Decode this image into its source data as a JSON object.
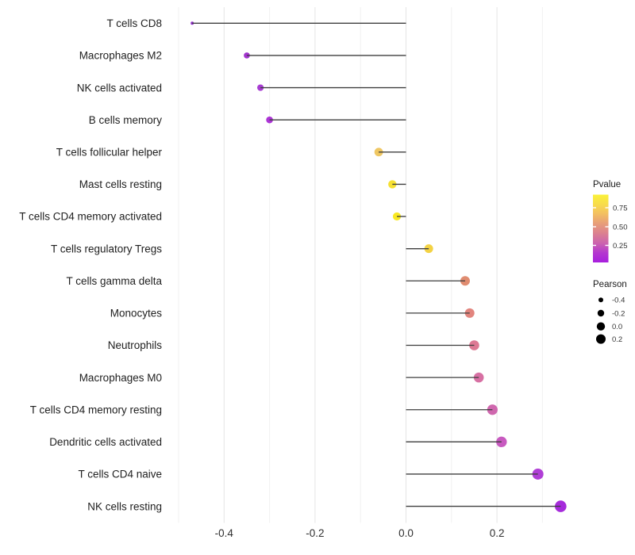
{
  "figure": {
    "background": "#ffffff"
  },
  "chart_data": {
    "type": "scatter",
    "style": "lollipop (horizontal stems anchored at x=0, dot size = Pearson, dot color = Pvalue)",
    "title": "",
    "xlabel": "",
    "ylabel": "",
    "xlim": [
      -0.507,
      0.384
    ],
    "x_major_ticks": [
      -0.4,
      -0.2,
      0.0,
      0.2
    ],
    "x_major_tick_labels": [
      "-0.4",
      "-0.2",
      "0.0",
      "0.2"
    ],
    "x_minor_ticks": [
      -0.5,
      -0.3,
      -0.1,
      0.1,
      0.3
    ],
    "grid": "vertical major+minor light gray gridlines on white, no axis lines, no tick marks",
    "baseline_x": 0.0,
    "stem_color": "#3E3E3E",
    "categories": [
      "T cells CD8",
      "Macrophages M2",
      "NK cells activated",
      "B cells memory",
      "T cells follicular helper",
      "Mast cells resting",
      "T cells CD4 memory activated",
      "T cells regulatory  Tregs",
      "T cells gamma delta",
      "Monocytes",
      "Neutrophils",
      "Macrophages M0",
      "T cells CD4 memory resting",
      "Dendritic cells activated",
      "T cells CD4 naive",
      "NK cells resting"
    ],
    "points": [
      {
        "label": "T cells CD8",
        "pearson": -0.47,
        "color": "#9130C9",
        "radius": 2.0
      },
      {
        "label": "Macrophages M2",
        "pearson": -0.35,
        "color": "#A234CE",
        "radius": 3.8
      },
      {
        "label": "NK cells activated",
        "pearson": -0.32,
        "color": "#A73CD2",
        "radius": 4.1
      },
      {
        "label": "B cells memory",
        "pearson": -0.3,
        "color": "#AC34D6",
        "radius": 4.3
      },
      {
        "label": "T cells follicular helper",
        "pearson": -0.06,
        "color": "#EFC763",
        "radius": 5.4
      },
      {
        "label": "Mast cells resting",
        "pearson": -0.03,
        "color": "#F6E032",
        "radius": 5.2
      },
      {
        "label": "T cells CD4 memory activated",
        "pearson": -0.02,
        "color": "#F9E822",
        "radius": 5.1
      },
      {
        "label": "T cells regulatory  Tregs",
        "pearson": 0.05,
        "color": "#F3D244",
        "radius": 5.5
      },
      {
        "label": "T cells gamma delta",
        "pearson": 0.13,
        "color": "#E08C70",
        "radius": 6.0
      },
      {
        "label": "Monocytes",
        "pearson": 0.14,
        "color": "#E2857E",
        "radius": 6.0
      },
      {
        "label": "Neutrophils",
        "pearson": 0.15,
        "color": "#DD7994",
        "radius": 6.3
      },
      {
        "label": "Macrophages M0",
        "pearson": 0.16,
        "color": "#D770A3",
        "radius": 6.3
      },
      {
        "label": "T cells CD4 memory resting",
        "pearson": 0.19,
        "color": "#CF67AE",
        "radius": 6.6
      },
      {
        "label": "Dendritic cells activated",
        "pearson": 0.21,
        "color": "#C85AC0",
        "radius": 6.7
      },
      {
        "label": "T cells CD4 naive",
        "pearson": 0.29,
        "color": "#B03ED6",
        "radius": 7.0
      },
      {
        "label": "NK cells resting",
        "pearson": 0.34,
        "color": "#A62BDB",
        "radius": 7.3
      }
    ],
    "legend_pvalue": {
      "title": "Pvalue",
      "tick_labels": [
        "0.75",
        "0.50",
        "0.25"
      ],
      "gradient_top_to_bottom": [
        "#FAF138",
        "#F8DC4B",
        "#F3BE62",
        "#E79D79",
        "#DB8090",
        "#CC64AE",
        "#B438CF",
        "#A81EDE"
      ],
      "position": "right"
    },
    "legend_pearson": {
      "title": "Pearson",
      "dot_color": "#000000",
      "entries": [
        {
          "label": "-0.4",
          "radius": 3.0
        },
        {
          "label": "-0.2",
          "radius": 4.2
        },
        {
          "label": "0.0",
          "radius": 5.2
        },
        {
          "label": "0.2",
          "radius": 6.0
        }
      ],
      "position": "right"
    }
  }
}
